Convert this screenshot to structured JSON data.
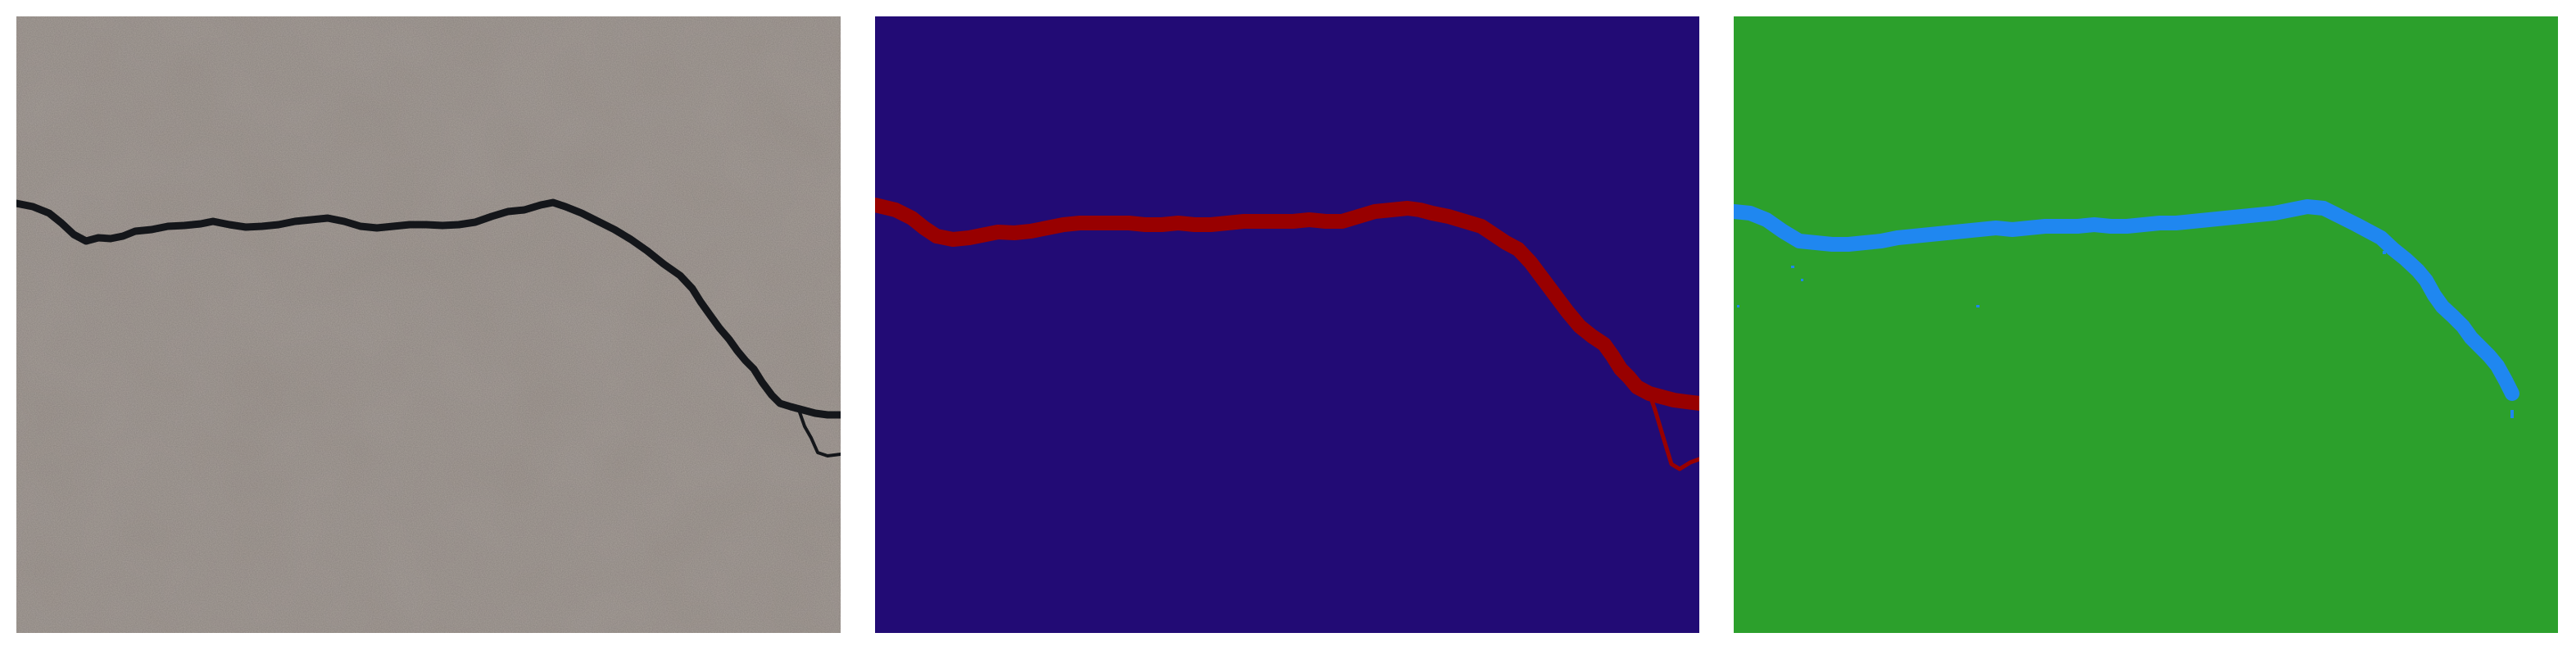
{
  "panels": [
    {
      "id": "photo",
      "kind": "photograph",
      "colors": {
        "surface": "#a79e98",
        "surface_dark": "#8f8781",
        "surface_light": "#c0b8b2",
        "crack": "#14161a"
      }
    },
    {
      "id": "ground-truth",
      "kind": "segmentation-mask",
      "colors": {
        "background": "#220b75",
        "crack": "#980000"
      }
    },
    {
      "id": "prediction",
      "kind": "segmentation-mask",
      "colors": {
        "background": "#2ca02c",
        "crack": "#1f87f0"
      }
    }
  ]
}
